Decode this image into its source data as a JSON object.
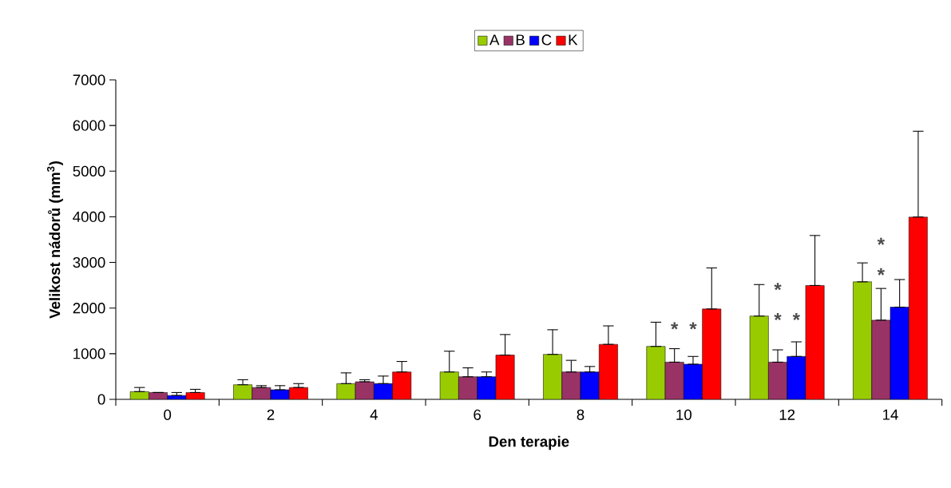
{
  "chart_data": {
    "type": "bar",
    "xlabel": "Den terapie",
    "ylabel": "Velikost nádorů (mm$^{3}$)",
    "categories": [
      "0",
      "2",
      "4",
      "6",
      "8",
      "10",
      "12",
      "14"
    ],
    "series": [
      {
        "name": "A",
        "color": "#99cc00",
        "values": [
          170,
          320,
          345,
          600,
          985,
          1160,
          1825,
          2575
        ],
        "errors": [
          [
            170,
            260
          ],
          [
            320,
            430
          ],
          [
            345,
            580
          ],
          [
            600,
            1055
          ],
          [
            985,
            1525
          ],
          [
            1160,
            1690
          ],
          [
            1825,
            2515
          ],
          [
            2575,
            2990
          ]
        ]
      },
      {
        "name": "B",
        "color": "#993366",
        "values": [
          150,
          260,
          385,
          495,
          600,
          815,
          815,
          1735
        ],
        "errors": [
          null,
          [
            260,
            300
          ],
          [
            385,
            430
          ],
          [
            495,
            690
          ],
          [
            600,
            855
          ],
          [
            815,
            1110
          ],
          [
            815,
            1085
          ],
          [
            1735,
            2430
          ]
        ]
      },
      {
        "name": "C",
        "color": "#0000ff",
        "values": [
          85,
          210,
          345,
          495,
          600,
          770,
          940,
          2020
        ],
        "errors": [
          [
            85,
            150
          ],
          [
            210,
            300
          ],
          [
            345,
            510
          ],
          [
            495,
            600
          ],
          [
            600,
            720
          ],
          [
            770,
            940
          ],
          [
            940,
            1260
          ],
          [
            2020,
            2625
          ]
        ]
      },
      {
        "name": "K",
        "color": "#ff0000",
        "values": [
          150,
          260,
          600,
          970,
          1205,
          1980,
          2495,
          3995
        ],
        "errors": [
          [
            150,
            220
          ],
          [
            260,
            345
          ],
          [
            600,
            830
          ],
          [
            970,
            1420
          ],
          [
            1205,
            1610
          ],
          [
            1980,
            2880
          ],
          [
            2495,
            3590
          ],
          [
            3995,
            5875
          ]
        ]
      }
    ],
    "ylim": [
      0,
      7000
    ],
    "yticks": [
      0,
      1000,
      2000,
      3000,
      4000,
      5000,
      6000,
      7000
    ],
    "grid": false,
    "legend": "top",
    "annotations": [
      "*",
      "*",
      "*",
      "*",
      "*",
      "*",
      "*"
    ]
  }
}
